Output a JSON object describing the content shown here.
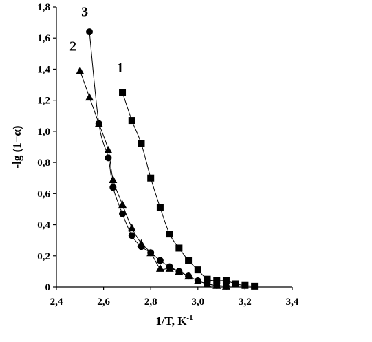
{
  "chart_data": {
    "type": "scatter",
    "title": "",
    "xlabel": "1/T, K",
    "xlabel_sup": "-1",
    "ylabel": "-lg (1−α)",
    "xlim": [
      2.4,
      3.4
    ],
    "ylim": [
      0,
      1.8
    ],
    "x_ticks": [
      2.4,
      2.6,
      2.8,
      3.0,
      3.2,
      3.4
    ],
    "x_tick_labels": [
      "2,4",
      "2,6",
      "2,8",
      "3,0",
      "3,2",
      "3,4"
    ],
    "y_ticks": [
      0,
      0.2,
      0.4,
      0.6,
      0.8,
      1.0,
      1.2,
      1.4,
      1.6,
      1.8
    ],
    "y_tick_labels": [
      "0",
      "0,2",
      "0,4",
      "0,6",
      "0,8",
      "1,0",
      "1,2",
      "1,4",
      "1,6",
      "1,8"
    ],
    "grid": false,
    "legend": "none",
    "series": [
      {
        "name": "1",
        "marker": "square",
        "label_at": [
          2.67,
          1.38
        ],
        "x": [
          2.68,
          2.72,
          2.76,
          2.8,
          2.84,
          2.88,
          2.92,
          2.96,
          3.0,
          3.04,
          3.08,
          3.12,
          3.16,
          3.2,
          3.24
        ],
        "y": [
          1.25,
          1.07,
          0.92,
          0.7,
          0.51,
          0.34,
          0.25,
          0.17,
          0.11,
          0.05,
          0.04,
          0.04,
          0.02,
          0.01,
          0.005
        ]
      },
      {
        "name": "2",
        "marker": "triangle",
        "label_at": [
          2.47,
          1.52
        ],
        "x": [
          2.5,
          2.54,
          2.58,
          2.62,
          2.64,
          2.68,
          2.72,
          2.76,
          2.8,
          2.84,
          2.88,
          2.92,
          2.96,
          3.0,
          3.04,
          3.08,
          3.12
        ],
        "y": [
          1.39,
          1.22,
          1.05,
          0.88,
          0.69,
          0.53,
          0.38,
          0.28,
          0.22,
          0.12,
          0.12,
          0.1,
          0.07,
          0.04,
          0.02,
          0.01,
          0.005
        ]
      },
      {
        "name": "3",
        "marker": "circle",
        "label_at": [
          2.52,
          1.74
        ],
        "x": [
          2.54,
          2.58,
          2.62,
          2.64,
          2.68,
          2.72,
          2.76,
          2.8,
          2.84,
          2.88,
          2.92,
          2.96,
          3.0,
          3.04,
          3.08,
          3.12
        ],
        "y": [
          1.64,
          1.05,
          0.83,
          0.64,
          0.47,
          0.33,
          0.26,
          0.22,
          0.17,
          0.13,
          0.1,
          0.07,
          0.04,
          0.02,
          0.01,
          0.005
        ]
      }
    ]
  }
}
